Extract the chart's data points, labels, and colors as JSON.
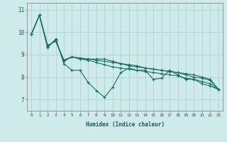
{
  "xlabel": "Humidex (Indice chaleur)",
  "ylabel": "",
  "background_color": "#ceeaea",
  "grid_color": "#aed4d4",
  "line_color": "#1a6e5e",
  "xlim": [
    -0.5,
    23.5
  ],
  "ylim": [
    6.5,
    11.3
  ],
  "yticks": [
    7,
    8,
    9,
    10,
    11
  ],
  "xticks": [
    0,
    1,
    2,
    3,
    4,
    5,
    6,
    7,
    8,
    9,
    10,
    11,
    12,
    13,
    14,
    15,
    16,
    17,
    18,
    19,
    20,
    21,
    22,
    23
  ],
  "series": [
    [
      9.9,
      10.75,
      9.3,
      9.7,
      8.6,
      8.3,
      8.3,
      7.75,
      7.4,
      7.1,
      7.55,
      8.2,
      8.4,
      8.3,
      8.3,
      7.9,
      7.95,
      8.3,
      8.1,
      7.9,
      7.9,
      7.7,
      7.6,
      7.45
    ],
    [
      9.9,
      10.75,
      9.4,
      9.6,
      8.75,
      8.9,
      8.8,
      8.8,
      8.8,
      8.8,
      8.7,
      8.6,
      8.55,
      8.5,
      8.4,
      8.35,
      8.3,
      8.25,
      8.2,
      8.15,
      8.1,
      8.0,
      7.9,
      7.45
    ],
    [
      9.9,
      10.75,
      9.4,
      9.6,
      8.75,
      8.9,
      8.85,
      8.8,
      8.75,
      8.7,
      8.65,
      8.6,
      8.5,
      8.45,
      8.4,
      8.35,
      8.3,
      8.25,
      8.2,
      8.1,
      8.0,
      7.95,
      7.85,
      7.45
    ],
    [
      9.9,
      10.75,
      9.35,
      9.65,
      8.7,
      8.9,
      8.8,
      8.75,
      8.65,
      8.55,
      8.45,
      8.4,
      8.35,
      8.3,
      8.25,
      8.2,
      8.15,
      8.1,
      8.05,
      7.95,
      7.9,
      7.8,
      7.7,
      7.45
    ]
  ]
}
